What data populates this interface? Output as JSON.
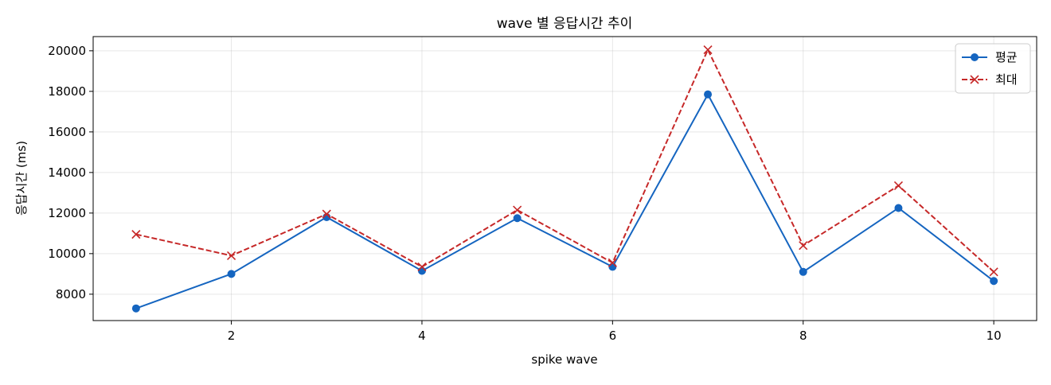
{
  "chart_data": {
    "type": "line",
    "title": "wave 별 응답시간 추이",
    "xlabel": "spike wave",
    "ylabel": "응답시간 (ms)",
    "x": [
      1,
      2,
      3,
      4,
      5,
      6,
      7,
      8,
      9,
      10
    ],
    "xlim": [
      0.55,
      10.45
    ],
    "ylim": [
      6700,
      20700
    ],
    "xticks": [
      2,
      4,
      6,
      8,
      10
    ],
    "yticks": [
      8000,
      10000,
      12000,
      14000,
      16000,
      18000,
      20000
    ],
    "grid": true,
    "legend_position": "top-right",
    "series": [
      {
        "name": "평균",
        "color": "#1565c0",
        "line_style": "solid",
        "marker": "circle",
        "values": [
          7300,
          9000,
          11800,
          9150,
          11750,
          9350,
          17850,
          9100,
          12250,
          8650
        ]
      },
      {
        "name": "최대",
        "color": "#c62828",
        "line_style": "dashed",
        "marker": "x",
        "values": [
          10950,
          9900,
          11950,
          9350,
          12150,
          9550,
          20050,
          10400,
          13350,
          9100
        ]
      }
    ]
  }
}
